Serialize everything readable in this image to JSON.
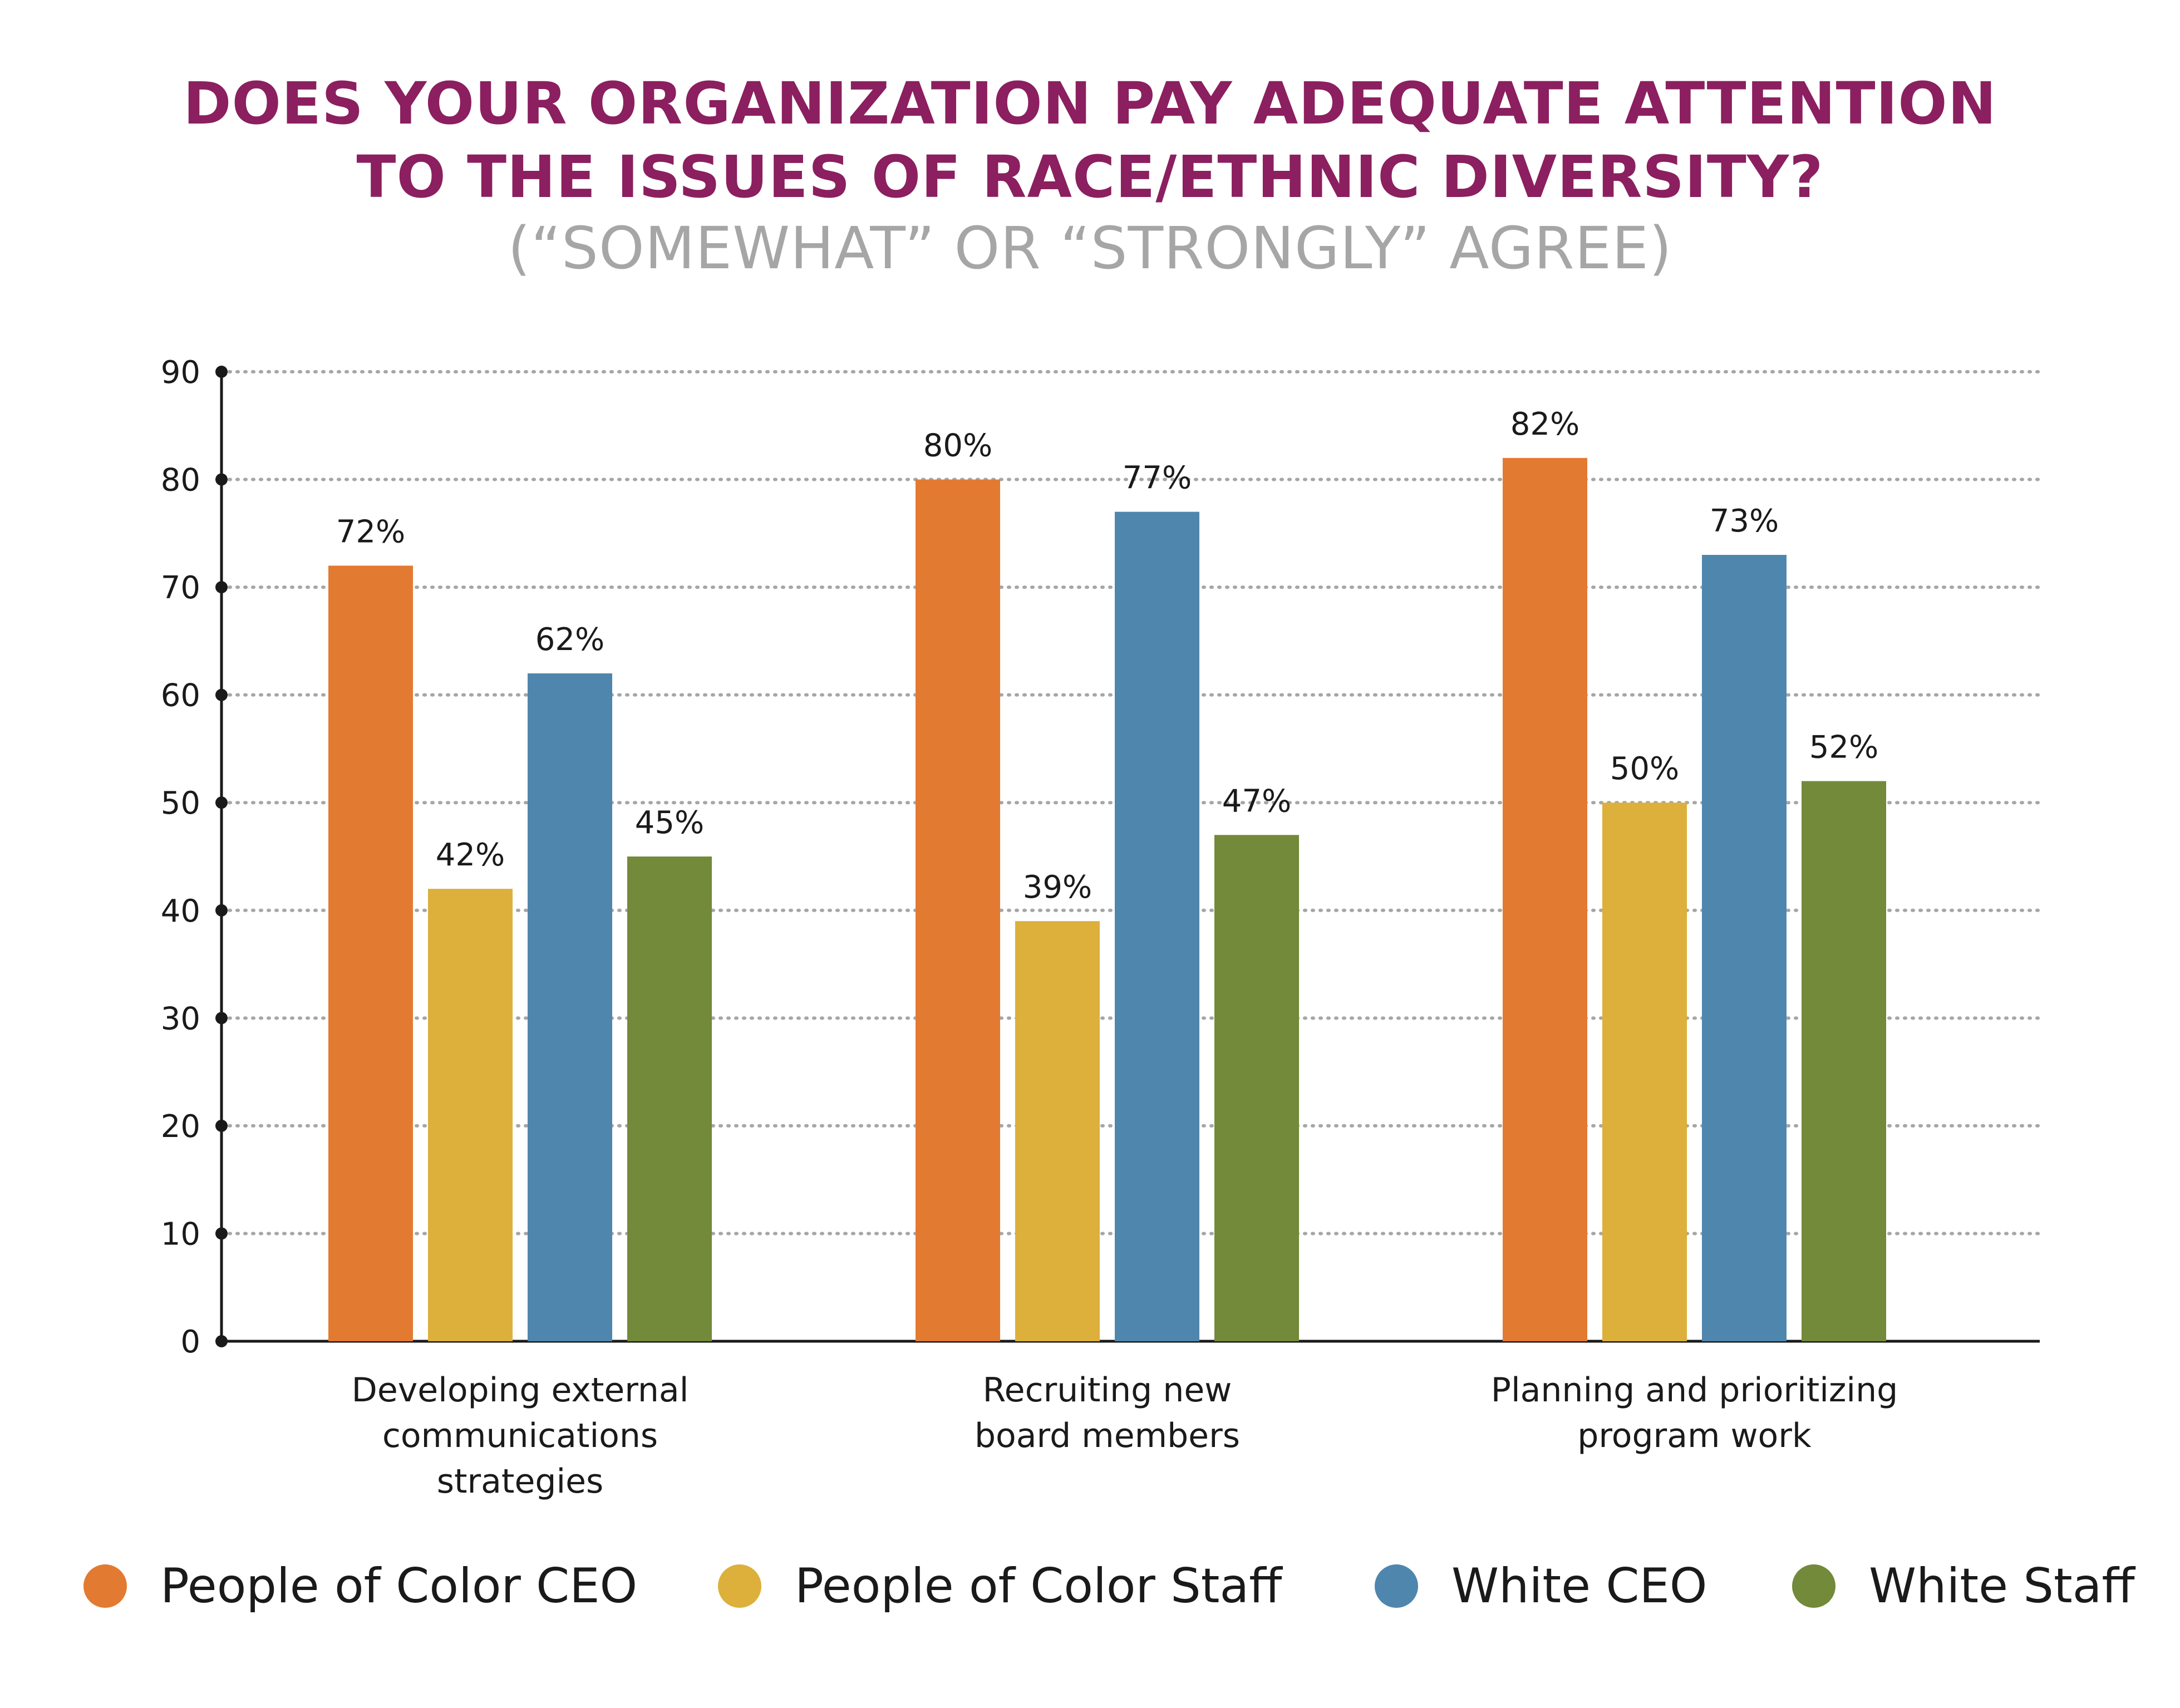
{
  "chart_data": {
    "type": "bar",
    "title_lines": [
      "DOES YOUR ORGANIZATION PAY ADEQUATE ATTENTION",
      "TO THE ISSUES OF RACE/ETHNIC DIVERSITY?"
    ],
    "subtitle": "(“SOMEWHAT” OR “STRONGLY” AGREE)",
    "categories": [
      [
        "Developing external",
        "communications",
        "strategies"
      ],
      [
        "Recruiting new",
        "board members"
      ],
      [
        "Planning and prioritizing",
        "program work"
      ]
    ],
    "series": [
      {
        "name": "People of Color CEO",
        "color": "#e37a31",
        "values": [
          72,
          80,
          82
        ],
        "labels": [
          "72%",
          "80%",
          "82%"
        ]
      },
      {
        "name": "People of Color Staff",
        "color": "#dcb03b",
        "values": [
          42,
          39,
          50
        ],
        "labels": [
          "42%",
          "39%",
          "50%"
        ]
      },
      {
        "name": "White CEO",
        "color": "#4f86ad",
        "values": [
          62,
          77,
          73
        ],
        "labels": [
          "62%",
          "77%",
          "73%"
        ]
      },
      {
        "name": "White Staff",
        "color": "#728a39",
        "values": [
          45,
          47,
          52
        ],
        "labels": [
          "45%",
          "47%",
          "52%"
        ]
      }
    ],
    "y_ticks": [
      "0",
      "10",
      "20",
      "30",
      "40",
      "50",
      "60",
      "70",
      "80",
      "90"
    ],
    "ylim": [
      0,
      90
    ],
    "grid": true,
    "legend_position": "bottom"
  },
  "colors": {
    "title": "#8b1f5f",
    "subtitle": "#a6a6a6",
    "axis": "#1a1a1a",
    "grid": "#a6a6a6"
  }
}
